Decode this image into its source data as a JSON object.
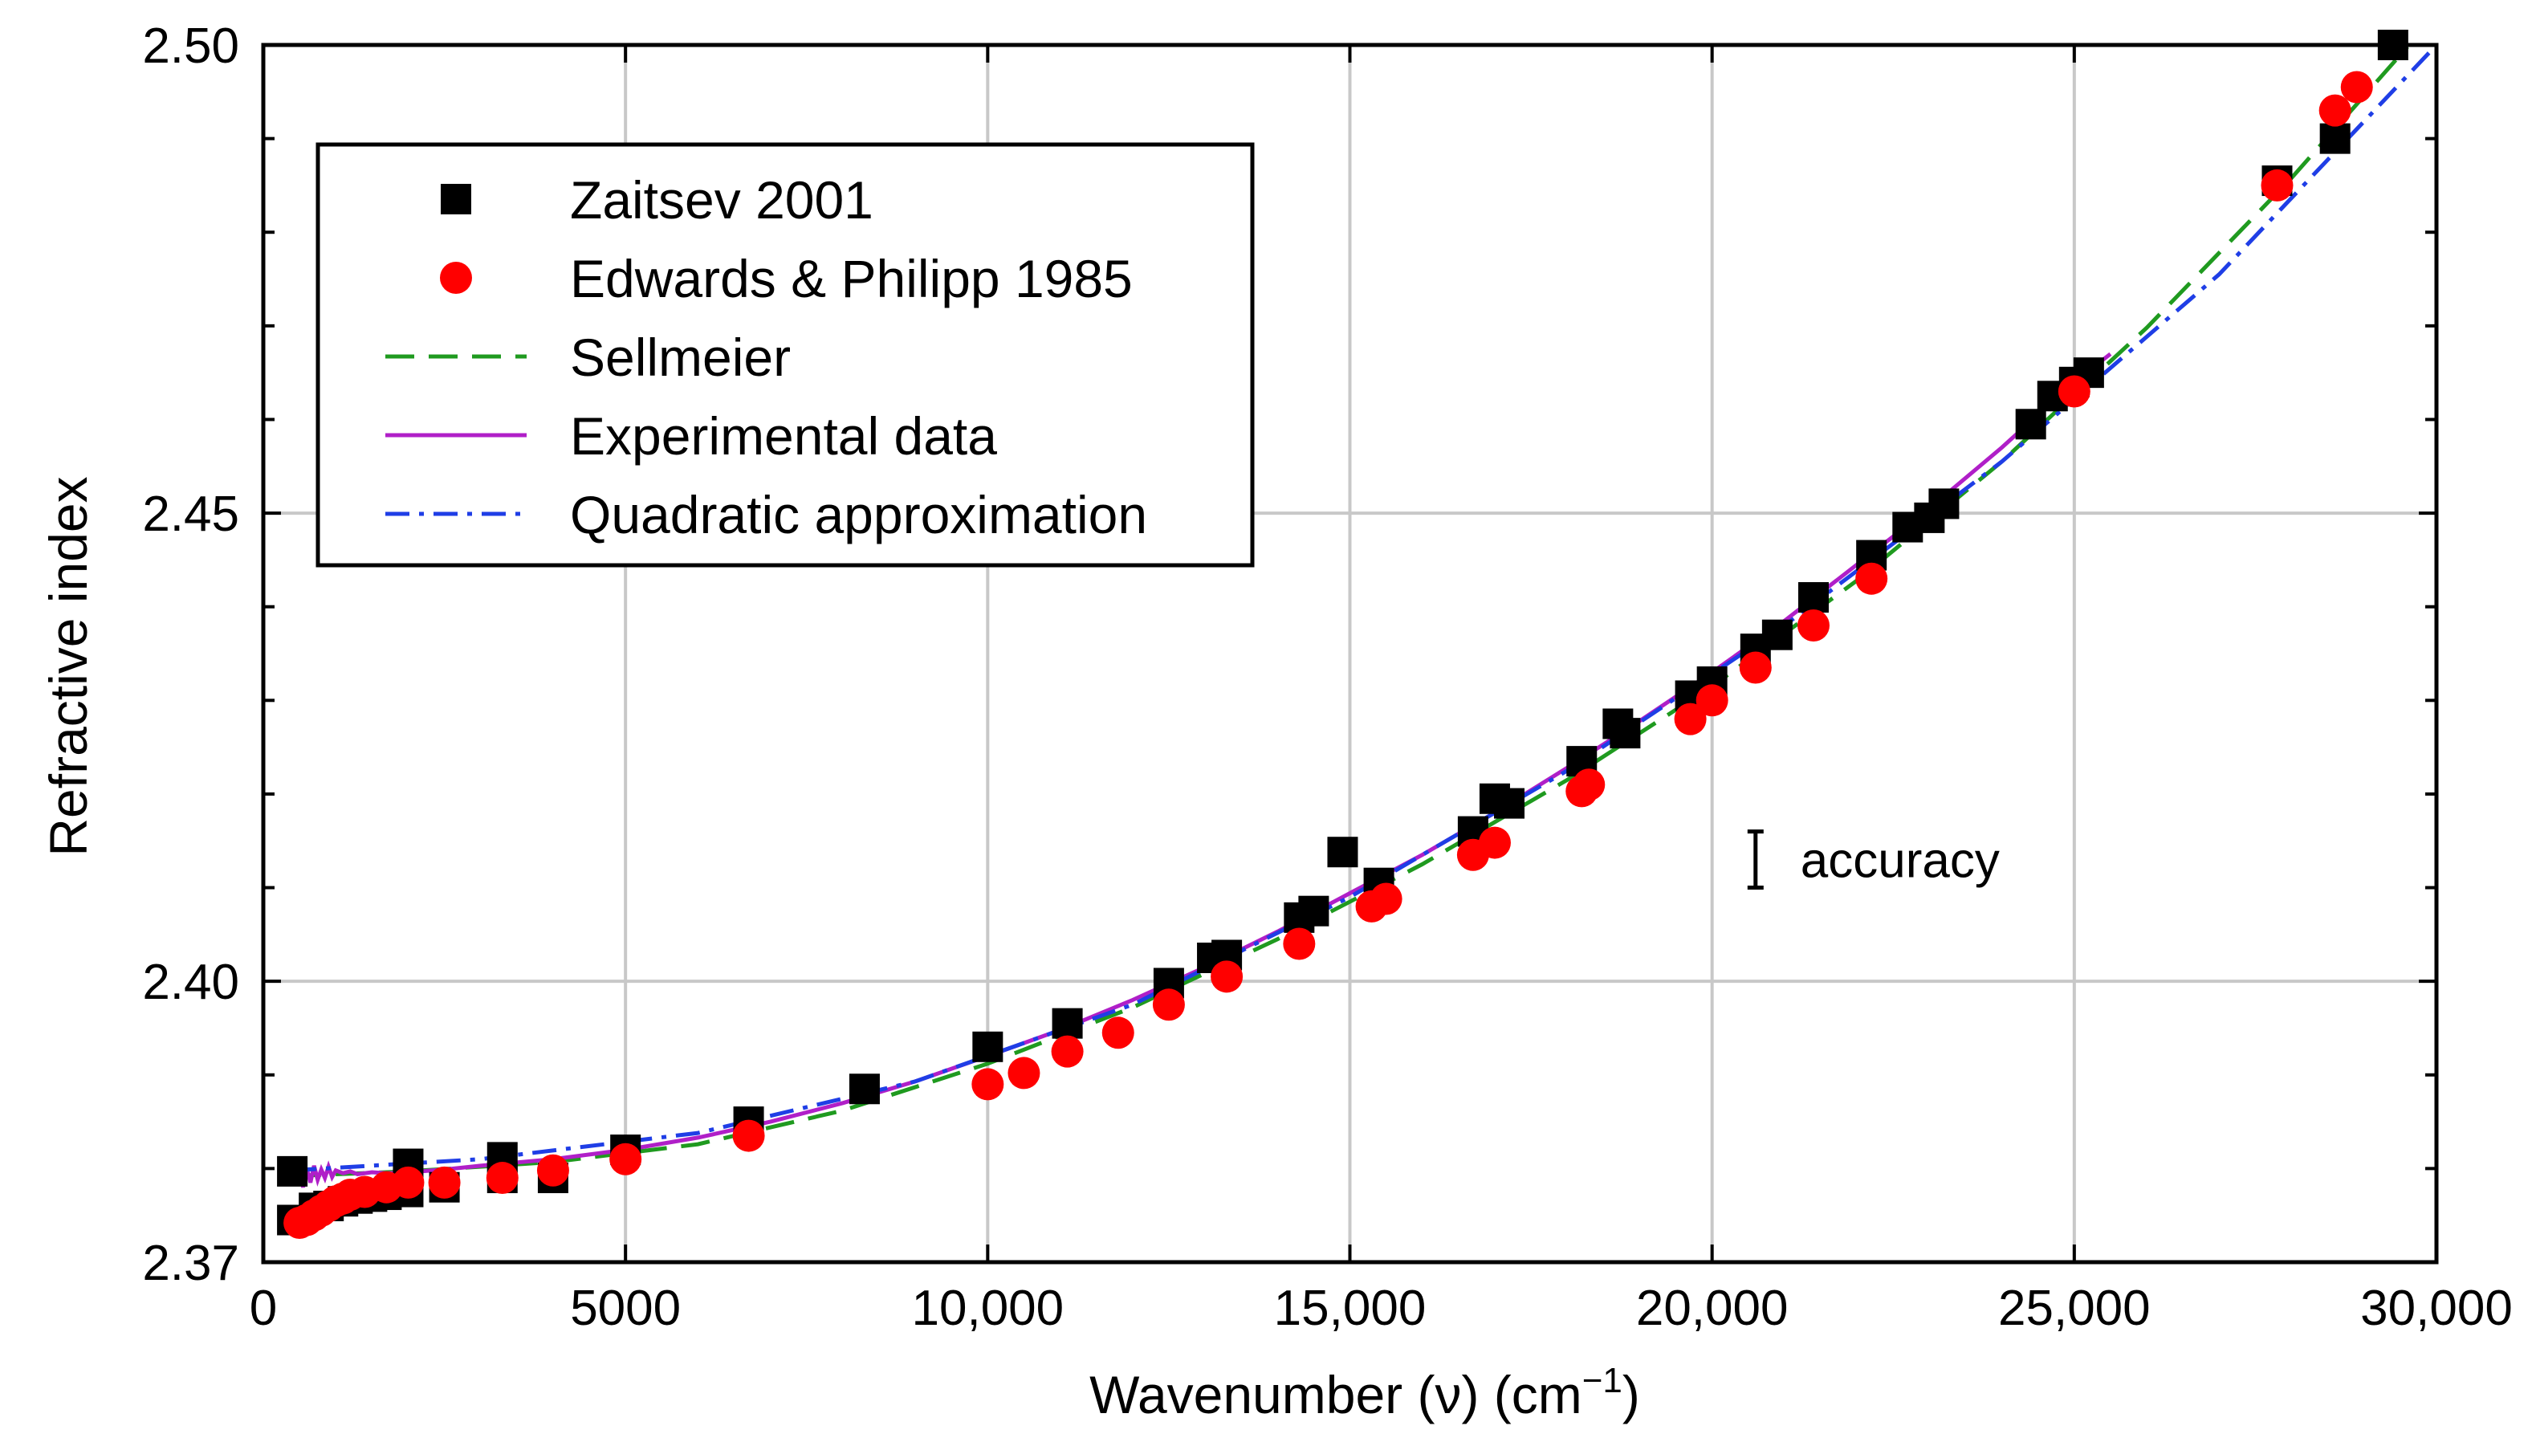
{
  "chart_data": {
    "type": "scatter",
    "title": "",
    "xlabel": "Wavenumber (ν) (cm",
    "xlabel_sup": "−1",
    "xlabel_close": ")",
    "ylabel": "Refractive index",
    "xlim": [
      0,
      30000
    ],
    "ylim": [
      2.37,
      2.5
    ],
    "xticks": [
      0,
      5000,
      10000,
      15000,
      20000,
      25000,
      30000
    ],
    "xtick_labels": [
      "0",
      "5000",
      "10,000",
      "15,000",
      "20,000",
      "25,000",
      "30,000"
    ],
    "yticks_labeled": [
      2.37,
      2.4,
      2.45,
      2.5
    ],
    "ytick_labels": [
      "2.37",
      "2.40",
      "2.45",
      "2.50"
    ],
    "yminor_ticks": [
      2.38,
      2.39,
      2.41,
      2.42,
      2.43,
      2.44,
      2.46,
      2.47,
      2.48,
      2.49
    ],
    "grid": true,
    "legend_position": "top-left",
    "annotation": {
      "text": "accuracy",
      "x": 20600,
      "y": 2.413,
      "half_range": 0.003
    },
    "series": [
      {
        "name": "Zaitsev 2001",
        "kind": "scatter",
        "marker": "square",
        "color": "#000000",
        "points": [
          [
            400,
            2.3797
          ],
          [
            400,
            2.3745
          ],
          [
            700,
            2.3758
          ],
          [
            900,
            2.376
          ],
          [
            1100,
            2.3765
          ],
          [
            1300,
            2.3768
          ],
          [
            1500,
            2.377
          ],
          [
            1700,
            2.3772
          ],
          [
            2000,
            2.3775
          ],
          [
            2000,
            2.3805
          ],
          [
            2500,
            2.378
          ],
          [
            3300,
            2.379
          ],
          [
            3300,
            2.3812
          ],
          [
            4000,
            2.379
          ],
          [
            5000,
            2.382
          ],
          [
            6700,
            2.385
          ],
          [
            8300,
            2.3885
          ],
          [
            10000,
            2.393
          ],
          [
            11100,
            2.3955
          ],
          [
            12500,
            2.3998
          ],
          [
            13100,
            2.4025
          ],
          [
            13300,
            2.4028
          ],
          [
            14300,
            2.4068
          ],
          [
            14500,
            2.4075
          ],
          [
            14900,
            2.4138
          ],
          [
            15400,
            2.4105
          ],
          [
            16700,
            2.416
          ],
          [
            17000,
            2.4195
          ],
          [
            17200,
            2.419
          ],
          [
            18200,
            2.4235
          ],
          [
            18700,
            2.4275
          ],
          [
            18800,
            2.4265
          ],
          [
            19700,
            2.4305
          ],
          [
            20000,
            2.432
          ],
          [
            20600,
            2.4355
          ],
          [
            20900,
            2.437
          ],
          [
            21400,
            2.441
          ],
          [
            22200,
            2.4455
          ],
          [
            22700,
            2.4485
          ],
          [
            23000,
            2.4495
          ],
          [
            23200,
            2.451
          ],
          [
            24400,
            2.4595
          ],
          [
            24700,
            2.4625
          ],
          [
            25000,
            2.464
          ],
          [
            25200,
            2.465
          ],
          [
            27800,
            2.4855
          ],
          [
            28600,
            2.49
          ],
          [
            29400,
            2.5
          ]
        ]
      },
      {
        "name": "Edwards & Philipp 1985",
        "kind": "scatter",
        "marker": "circle",
        "color": "#ff0000",
        "points": [
          [
            500,
            2.3742
          ],
          [
            600,
            2.3745
          ],
          [
            700,
            2.375
          ],
          [
            800,
            2.3755
          ],
          [
            900,
            2.376
          ],
          [
            1000,
            2.3765
          ],
          [
            1100,
            2.3768
          ],
          [
            1200,
            2.3772
          ],
          [
            1400,
            2.3775
          ],
          [
            1700,
            2.378
          ],
          [
            2000,
            2.3785
          ],
          [
            2500,
            2.3785
          ],
          [
            3300,
            2.379
          ],
          [
            4000,
            2.3798
          ],
          [
            5000,
            2.381
          ],
          [
            6700,
            2.3835
          ],
          [
            10000,
            2.389
          ],
          [
            10500,
            2.3902
          ],
          [
            11100,
            2.3925
          ],
          [
            11800,
            2.3945
          ],
          [
            12500,
            2.3975
          ],
          [
            13300,
            2.4005
          ],
          [
            14300,
            2.404
          ],
          [
            15300,
            2.408
          ],
          [
            15500,
            2.4088
          ],
          [
            16700,
            2.4135
          ],
          [
            17000,
            2.4148
          ],
          [
            18200,
            2.4203
          ],
          [
            18300,
            2.421
          ],
          [
            19700,
            2.428
          ],
          [
            20000,
            2.43
          ],
          [
            20600,
            2.4335
          ],
          [
            21400,
            2.438
          ],
          [
            22200,
            2.443
          ],
          [
            25000,
            2.463
          ],
          [
            27800,
            2.485
          ],
          [
            28600,
            2.493
          ],
          [
            28900,
            2.4955
          ]
        ]
      },
      {
        "name": "Sellmeier",
        "kind": "line",
        "style": "dashed",
        "color": "#1f9a1f",
        "points": [
          [
            400,
            2.3792
          ],
          [
            2000,
            2.3797
          ],
          [
            4000,
            2.3807
          ],
          [
            6000,
            2.3826
          ],
          [
            8000,
            2.3862
          ],
          [
            10000,
            2.3912
          ],
          [
            12000,
            2.3972
          ],
          [
            14000,
            2.4045
          ],
          [
            16000,
            2.4125
          ],
          [
            18000,
            2.4215
          ],
          [
            20000,
            2.4315
          ],
          [
            22000,
            2.4428
          ],
          [
            24000,
            2.4555
          ],
          [
            26000,
            2.4698
          ],
          [
            28000,
            2.4858
          ],
          [
            29600,
            2.4998
          ]
        ]
      },
      {
        "name": "Experimental data",
        "kind": "line",
        "style": "solid",
        "color": "#b01fc8",
        "points": [
          [
            500,
            2.3795
          ],
          [
            550,
            2.378
          ],
          [
            600,
            2.38
          ],
          [
            650,
            2.3785
          ],
          [
            700,
            2.3803
          ],
          [
            750,
            2.3788
          ],
          [
            800,
            2.3799
          ],
          [
            850,
            2.379
          ],
          [
            900,
            2.3802
          ],
          [
            950,
            2.3791
          ],
          [
            1000,
            2.3798
          ],
          [
            1100,
            2.3795
          ],
          [
            1200,
            2.3797
          ],
          [
            1300,
            2.3794
          ],
          [
            1500,
            2.3796
          ],
          [
            1700,
            2.3795
          ],
          [
            2000,
            2.3796
          ],
          [
            2500,
            2.3799
          ],
          [
            3000,
            2.3803
          ],
          [
            4000,
            2.381
          ],
          [
            5000,
            2.382
          ],
          [
            6000,
            2.3833
          ],
          [
            7000,
            2.385
          ],
          [
            8000,
            2.387
          ],
          [
            9000,
            2.3893
          ],
          [
            10000,
            2.392
          ],
          [
            11000,
            2.3948
          ],
          [
            12000,
            2.398
          ],
          [
            13000,
            2.4015
          ],
          [
            14000,
            2.4053
          ],
          [
            15000,
            2.4094
          ],
          [
            16000,
            2.4135
          ],
          [
            17000,
            2.418
          ],
          [
            18000,
            2.4228
          ],
          [
            19000,
            2.4278
          ],
          [
            20000,
            2.433
          ],
          [
            21000,
            2.4385
          ],
          [
            22000,
            2.4445
          ],
          [
            23000,
            2.4505
          ],
          [
            24000,
            2.457
          ],
          [
            25000,
            2.464
          ],
          [
            25500,
            2.467
          ]
        ]
      },
      {
        "name": "Quadratic approximation",
        "kind": "line",
        "style": "dashdot",
        "color": "#1f3ee6",
        "points": [
          [
            400,
            2.3798
          ],
          [
            3000,
            2.381
          ],
          [
            6000,
            2.3838
          ],
          [
            9000,
            2.3893
          ],
          [
            12000,
            2.3975
          ],
          [
            15000,
            2.409
          ],
          [
            18000,
            2.4225
          ],
          [
            21000,
            2.438
          ],
          [
            24000,
            2.4555
          ],
          [
            27000,
            2.4755
          ],
          [
            30000,
            2.5
          ]
        ]
      }
    ]
  }
}
